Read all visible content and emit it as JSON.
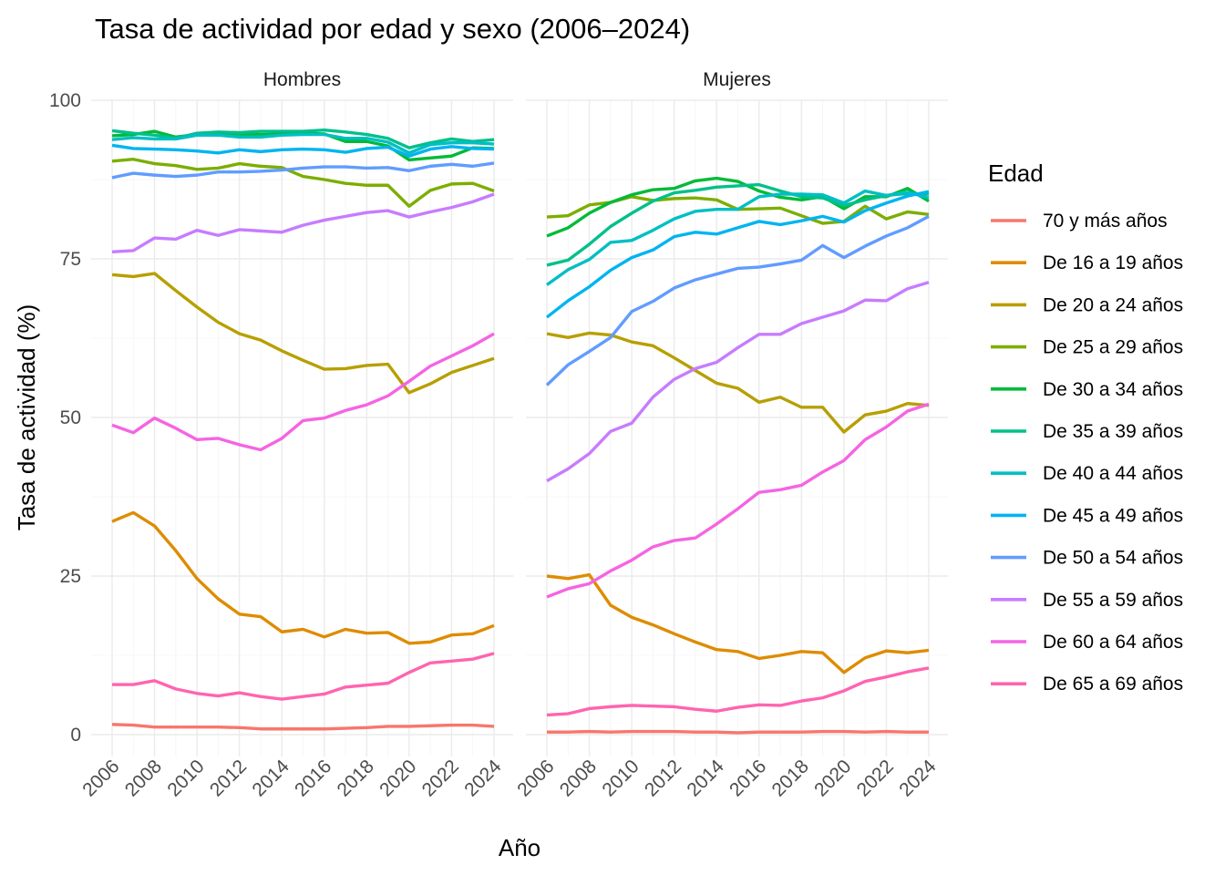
{
  "chart_data": {
    "type": "line",
    "title": "Tasa de actividad por edad y sexo (2006–2024)",
    "xlabel": "Año",
    "ylabel": "Tasa de actividad (%)",
    "ylim": [
      0,
      100
    ],
    "y_ticks": [
      0,
      25,
      50,
      75,
      100
    ],
    "xlim": [
      2006,
      2024
    ],
    "x_ticks": [
      2006,
      2008,
      2010,
      2012,
      2014,
      2016,
      2018,
      2020,
      2022,
      2024
    ],
    "grid": true,
    "legend": {
      "title": "Edad",
      "position": "right"
    },
    "x": [
      2006,
      2007,
      2008,
      2009,
      2010,
      2011,
      2012,
      2013,
      2014,
      2015,
      2016,
      2017,
      2018,
      2019,
      2020,
      2021,
      2022,
      2023,
      2024
    ],
    "groups": [
      {
        "name": "70 y más años",
        "color": "#F8766D"
      },
      {
        "name": "De 16 a 19 años",
        "color": "#DE8C00"
      },
      {
        "name": "De 20 a 24 años",
        "color": "#B79F00"
      },
      {
        "name": "De 25 a 29 años",
        "color": "#7CAE00"
      },
      {
        "name": "De 30 a 34 años",
        "color": "#00BA38"
      },
      {
        "name": "De 35 a 39 años",
        "color": "#00C08B"
      },
      {
        "name": "De 40 a 44 años",
        "color": "#00BFC4"
      },
      {
        "name": "De 45 a 49 años",
        "color": "#00B4F0"
      },
      {
        "name": "De 50 a 54 años",
        "color": "#619CFF"
      },
      {
        "name": "De 55 a 59 años",
        "color": "#C77CFF"
      },
      {
        "name": "De 60 a 64 años",
        "color": "#F564E3"
      },
      {
        "name": "De 65 a 69 años",
        "color": "#FF64B0"
      }
    ],
    "panels": [
      {
        "label": "Hombres",
        "series": [
          {
            "name": "70 y más años",
            "values": [
              1.6,
              1.5,
              1.2,
              1.2,
              1.2,
              1.2,
              1.1,
              0.9,
              0.9,
              0.9,
              0.9,
              1.0,
              1.1,
              1.3,
              1.3,
              1.4,
              1.5,
              1.5,
              1.3
            ]
          },
          {
            "name": "De 16 a 19 años",
            "values": [
              33.6,
              35.0,
              32.9,
              29.0,
              24.6,
              21.4,
              19.0,
              18.6,
              16.2,
              16.6,
              15.4,
              16.6,
              16.0,
              16.1,
              14.4,
              14.6,
              15.7,
              15.9,
              17.2
            ]
          },
          {
            "name": "De 20 a 24 años",
            "values": [
              72.5,
              72.2,
              72.7,
              70.0,
              67.4,
              65.0,
              63.2,
              62.2,
              60.5,
              59.0,
              57.6,
              57.7,
              58.2,
              58.4,
              53.9,
              55.3,
              57.1,
              58.2,
              59.3
            ]
          },
          {
            "name": "De 25 a 29 años",
            "values": [
              90.4,
              90.7,
              90.0,
              89.7,
              89.1,
              89.3,
              90.0,
              89.6,
              89.4,
              88.0,
              87.5,
              86.9,
              86.6,
              86.6,
              83.3,
              85.8,
              86.8,
              86.9,
              85.7
            ]
          },
          {
            "name": "De 30 a 34 años",
            "values": [
              94.4,
              94.6,
              95.1,
              94.2,
              94.6,
              94.7,
              94.6,
              94.6,
              94.7,
              94.8,
              94.7,
              93.5,
              93.5,
              92.8,
              90.6,
              90.9,
              91.2,
              92.5,
              92.4
            ]
          },
          {
            "name": "De 35 a 39 años",
            "values": [
              95.2,
              94.8,
              94.5,
              94.0,
              94.8,
              95.0,
              94.9,
              95.1,
              95.1,
              95.1,
              95.3,
              95.0,
              94.6,
              94.0,
              92.5,
              93.3,
              93.9,
              93.5,
              93.8
            ]
          },
          {
            "name": "De 40 a 44 años",
            "values": [
              93.8,
              94.1,
              93.9,
              93.9,
              94.5,
              94.5,
              94.2,
              94.2,
              94.5,
              94.6,
              94.6,
              94.0,
              94.0,
              93.4,
              91.7,
              93.0,
              93.3,
              93.3,
              93.1
            ]
          },
          {
            "name": "De 45 a 49 años",
            "values": [
              92.9,
              92.4,
              92.3,
              92.2,
              92.0,
              91.7,
              92.2,
              91.9,
              92.2,
              92.3,
              92.2,
              91.8,
              92.4,
              92.6,
              91.2,
              92.3,
              92.7,
              92.4,
              92.3
            ]
          },
          {
            "name": "De 50 a 54 años",
            "values": [
              87.8,
              88.5,
              88.2,
              88.0,
              88.2,
              88.7,
              88.7,
              88.8,
              89.0,
              89.3,
              89.5,
              89.5,
              89.3,
              89.4,
              88.9,
              89.6,
              89.9,
              89.6,
              90.1
            ]
          },
          {
            "name": "De 55 a 59 años",
            "values": [
              76.1,
              76.3,
              78.3,
              78.1,
              79.5,
              78.7,
              79.6,
              79.4,
              79.2,
              80.3,
              81.1,
              81.7,
              82.3,
              82.6,
              81.6,
              82.4,
              83.1,
              84.0,
              85.2
            ]
          },
          {
            "name": "De 60 a 64 años",
            "values": [
              48.8,
              47.6,
              49.9,
              48.3,
              46.5,
              46.7,
              45.7,
              44.9,
              46.7,
              49.5,
              49.9,
              51.1,
              52.0,
              53.4,
              55.7,
              58.1,
              59.7,
              61.3,
              63.2
            ]
          },
          {
            "name": "De 65 a 69 años",
            "values": [
              7.9,
              7.9,
              8.5,
              7.2,
              6.5,
              6.1,
              6.6,
              6.0,
              5.6,
              6.0,
              6.4,
              7.5,
              7.8,
              8.1,
              9.8,
              11.3,
              11.6,
              11.9,
              12.8
            ]
          }
        ]
      },
      {
        "label": "Mujeres",
        "series": [
          {
            "name": "70 y más años",
            "values": [
              0.4,
              0.4,
              0.5,
              0.4,
              0.5,
              0.5,
              0.5,
              0.4,
              0.4,
              0.3,
              0.4,
              0.4,
              0.4,
              0.5,
              0.5,
              0.4,
              0.5,
              0.4,
              0.4
            ]
          },
          {
            "name": "De 16 a 19 años",
            "values": [
              25.0,
              24.6,
              25.2,
              20.4,
              18.5,
              17.3,
              15.9,
              14.6,
              13.4,
              13.1,
              12.0,
              12.5,
              13.1,
              12.9,
              9.8,
              12.1,
              13.2,
              12.9,
              13.3
            ]
          },
          {
            "name": "De 20 a 24 años",
            "values": [
              63.2,
              62.6,
              63.3,
              63.0,
              61.9,
              61.3,
              59.4,
              57.4,
              55.4,
              54.6,
              52.4,
              53.2,
              51.6,
              51.6,
              47.7,
              50.4,
              51.0,
              52.2,
              51.9
            ]
          },
          {
            "name": "De 25 a 29 años",
            "values": [
              81.6,
              81.8,
              83.5,
              83.9,
              84.8,
              84.2,
              84.5,
              84.6,
              84.3,
              82.8,
              82.9,
              83.0,
              81.8,
              80.6,
              80.9,
              83.3,
              81.3,
              82.4,
              82.0
            ]
          },
          {
            "name": "De 30 a 34 años",
            "values": [
              78.6,
              79.9,
              82.2,
              83.9,
              85.1,
              85.9,
              86.1,
              87.3,
              87.7,
              87.2,
              85.7,
              84.7,
              84.3,
              84.8,
              82.9,
              84.8,
              84.8,
              86.1,
              84.1
            ]
          },
          {
            "name": "De 35 a 39 años",
            "values": [
              74.0,
              74.8,
              77.3,
              80.1,
              82.2,
              84.1,
              85.4,
              85.8,
              86.3,
              86.5,
              86.7,
              85.7,
              84.8,
              84.6,
              83.4,
              84.3,
              85.0,
              85.3,
              85.2
            ]
          },
          {
            "name": "De 40 a 44 años",
            "values": [
              70.9,
              73.3,
              74.9,
              77.6,
              77.9,
              79.5,
              81.3,
              82.5,
              82.8,
              82.8,
              84.8,
              85.2,
              85.2,
              85.1,
              83.8,
              85.7,
              85.0,
              85.5,
              84.6
            ]
          },
          {
            "name": "De 45 a 49 años",
            "values": [
              65.8,
              68.4,
              70.6,
              73.2,
              75.2,
              76.4,
              78.5,
              79.2,
              78.9,
              79.9,
              80.9,
              80.4,
              81.0,
              81.7,
              80.8,
              82.6,
              83.8,
              84.9,
              85.6
            ]
          },
          {
            "name": "De 50 a 54 años",
            "values": [
              55.1,
              58.3,
              60.4,
              62.6,
              66.7,
              68.3,
              70.4,
              71.7,
              72.6,
              73.5,
              73.7,
              74.2,
              74.8,
              77.1,
              75.2,
              77.0,
              78.6,
              79.9,
              81.7
            ]
          },
          {
            "name": "De 55 a 59 años",
            "values": [
              40.0,
              41.9,
              44.3,
              47.8,
              49.1,
              53.2,
              56.0,
              57.7,
              58.7,
              61.0,
              63.1,
              63.1,
              64.8,
              65.8,
              66.8,
              68.5,
              68.4,
              70.3,
              71.3
            ]
          },
          {
            "name": "De 60 a 64 años",
            "values": [
              21.7,
              23.0,
              23.8,
              25.8,
              27.5,
              29.6,
              30.6,
              31.0,
              33.2,
              35.6,
              38.2,
              38.6,
              39.3,
              41.4,
              43.2,
              46.5,
              48.5,
              51.0,
              52.1
            ]
          },
          {
            "name": "De 65 a 69 años",
            "values": [
              3.1,
              3.3,
              4.1,
              4.4,
              4.6,
              4.5,
              4.4,
              4.0,
              3.7,
              4.3,
              4.7,
              4.6,
              5.3,
              5.8,
              6.9,
              8.4,
              9.1,
              9.9,
              10.5
            ]
          }
        ]
      }
    ]
  }
}
